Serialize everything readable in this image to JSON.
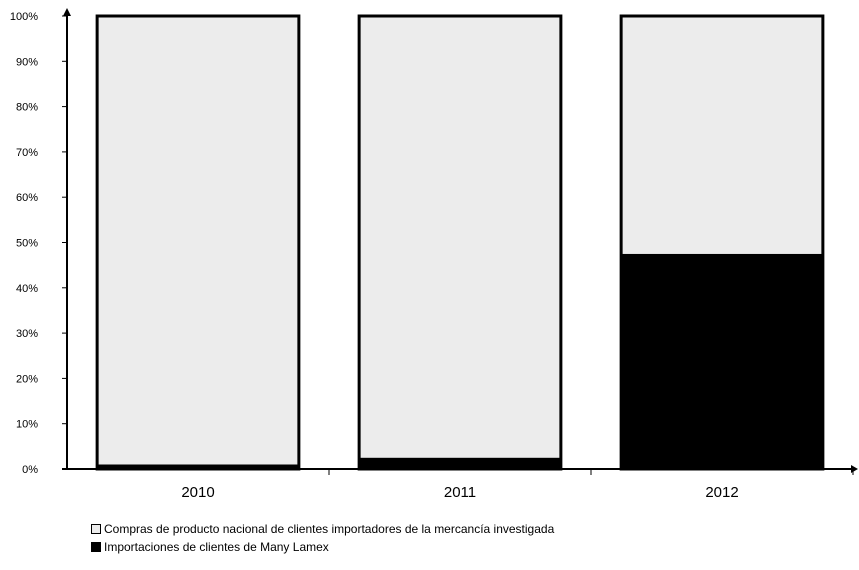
{
  "chart_data": {
    "type": "bar",
    "stacked": true,
    "categories": [
      "2010",
      "2011",
      "2012"
    ],
    "series": [
      {
        "name": "Importaciones de clientes de Many Lamex",
        "values": [
          1,
          2.5,
          47.5
        ],
        "color": "#000000"
      },
      {
        "name": "Compras de producto nacional de clientes importadores de la mercancía investigada",
        "values": [
          99,
          97.5,
          52.5
        ],
        "color": "#ececec"
      }
    ],
    "yticks": [
      "0%",
      "10%",
      "20%",
      "30%",
      "40%",
      "50%",
      "60%",
      "70%",
      "80%",
      "90%",
      "100%"
    ],
    "ylim": [
      0,
      100
    ],
    "legend_position": "bottom-left",
    "grid": false
  },
  "legend": {
    "item1": "Compras de producto nacional de clientes importadores de la mercancía investigada",
    "item2": "Importaciones de clientes de Many Lamex"
  }
}
